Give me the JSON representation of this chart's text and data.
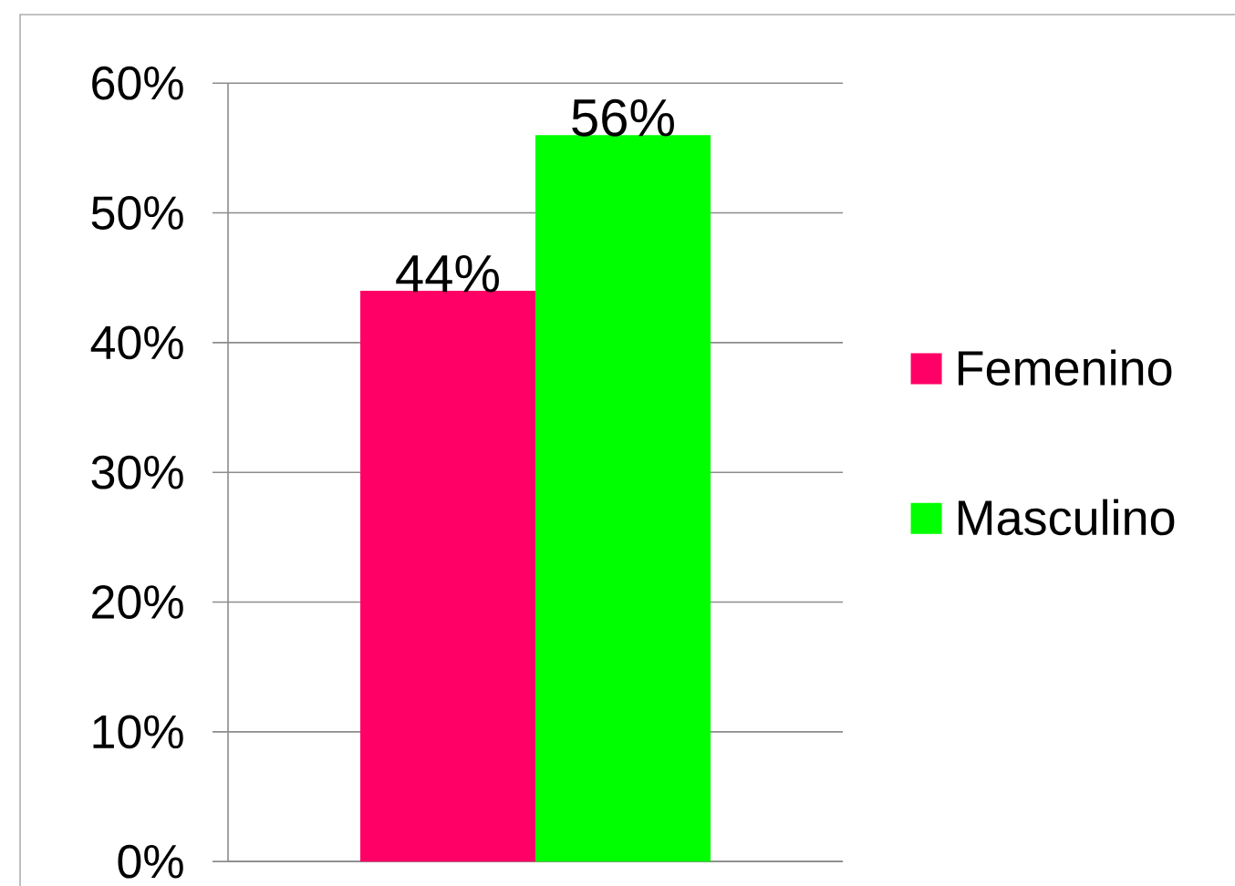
{
  "chart_data": {
    "type": "bar",
    "categories": [
      null
    ],
    "series": [
      {
        "name": "Femenino",
        "color": "#ff0066",
        "values": [
          44
        ],
        "value_labels": [
          "44%"
        ]
      },
      {
        "name": "Masculino",
        "color": "#00ff00",
        "values": [
          56
        ],
        "value_labels": [
          "56%"
        ]
      }
    ],
    "ylim": [
      0,
      60
    ],
    "yticks": [
      {
        "value": 0,
        "label": "0%"
      },
      {
        "value": 10,
        "label": "10%"
      },
      {
        "value": 20,
        "label": "20%"
      },
      {
        "value": 30,
        "label": "30%"
      },
      {
        "value": 40,
        "label": "40%"
      },
      {
        "value": 50,
        "label": "50%"
      },
      {
        "value": 60,
        "label": "60%"
      }
    ],
    "grid": "y",
    "legend": "right"
  }
}
